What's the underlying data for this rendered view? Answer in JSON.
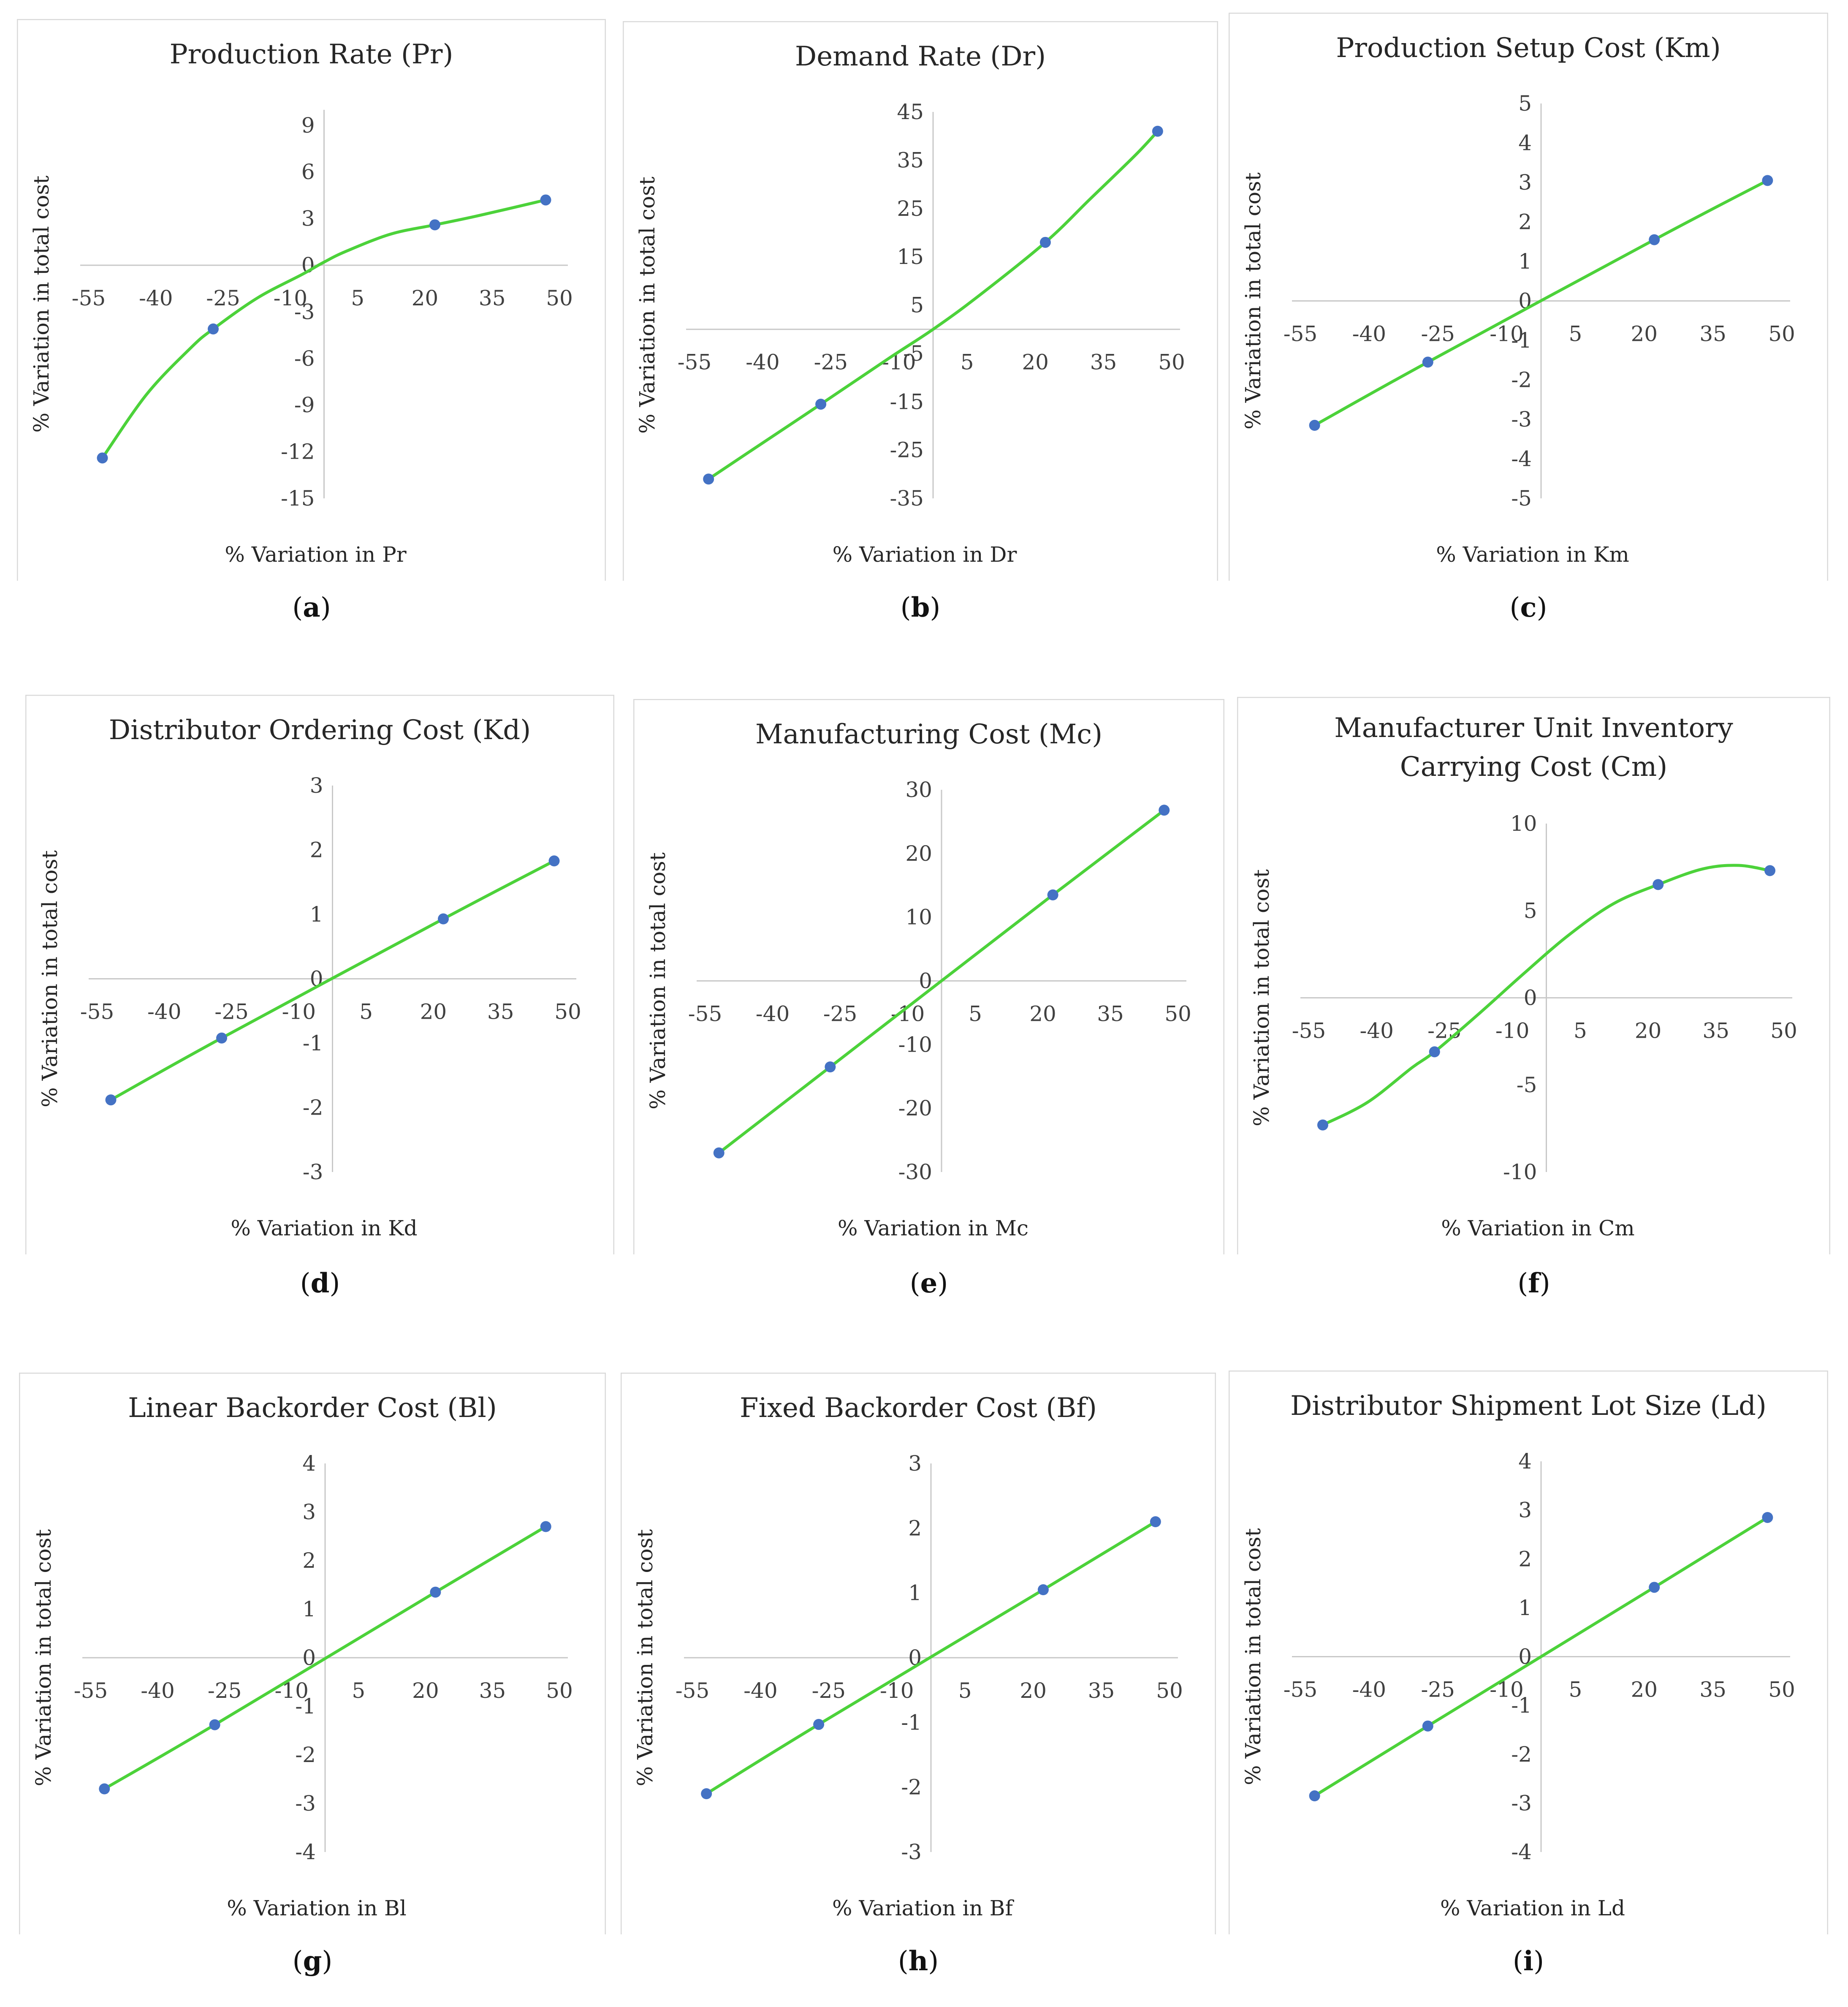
{
  "chart_data": [
    {
      "type": "scatter",
      "title": [
        "Production Rate (Pr)"
      ],
      "xlabel": "% Variation in Pr",
      "ylabel": "% Variation in total cost",
      "caption": "a",
      "xticks": [
        "-55",
        "-40",
        "-25",
        "-10",
        "5",
        "20",
        "35",
        "50"
      ],
      "yticks": [
        "-15",
        "-12",
        "-9",
        "-6",
        "-3",
        "0",
        "3",
        "6",
        "9"
      ],
      "xlim": [
        -55,
        55
      ],
      "ylim": [
        -15,
        10
      ],
      "x": [
        -50,
        -25,
        25,
        50
      ],
      "y": [
        -12.4,
        -4.1,
        2.6,
        4.2
      ],
      "curve": [
        [
          -50,
          -12.4
        ],
        [
          -40,
          -8.3
        ],
        [
          -30,
          -5.3
        ],
        [
          -25,
          -4.1
        ],
        [
          -15,
          -2.1
        ],
        [
          -5,
          -0.6
        ],
        [
          0,
          0.2
        ],
        [
          5,
          0.9
        ],
        [
          15,
          2.0
        ],
        [
          25,
          2.6
        ],
        [
          35,
          3.2
        ],
        [
          50,
          4.2
        ]
      ]
    },
    {
      "type": "scatter",
      "title": [
        "Demand Rate (Dr)"
      ],
      "xlabel": "% Variation in Dr",
      "ylabel": "% Variation in total cost",
      "caption": "b",
      "xticks": [
        "-55",
        "-40",
        "-25",
        "-10",
        "5",
        "20",
        "35",
        "50"
      ],
      "yticks": [
        "-35",
        "-25",
        "-15",
        "-5",
        "5",
        "15",
        "25",
        "35",
        "45"
      ],
      "xlim": [
        -55,
        55
      ],
      "ylim": [
        -35,
        45
      ],
      "x": [
        -50,
        -25,
        25,
        50
      ],
      "y": [
        -31,
        -15.5,
        18,
        41
      ],
      "curve": [
        [
          -50,
          -31
        ],
        [
          -40,
          -24.8
        ],
        [
          -25,
          -15.5
        ],
        [
          -10,
          -6.1
        ],
        [
          0,
          0
        ],
        [
          10,
          6.8
        ],
        [
          25,
          18
        ],
        [
          35,
          27
        ],
        [
          45,
          36
        ],
        [
          50,
          41
        ]
      ]
    },
    {
      "type": "scatter",
      "title": [
        "Production Setup Cost (Km)"
      ],
      "xlabel": "% Variation in Km",
      "ylabel": "% Variation in total cost",
      "caption": "c",
      "xticks": [
        "-55",
        "-40",
        "-25",
        "-10",
        "5",
        "20",
        "35",
        "50"
      ],
      "yticks": [
        "-5",
        "-4",
        "-3",
        "-2",
        "-1",
        "0",
        "1",
        "2",
        "3",
        "4",
        "5"
      ],
      "xlim": [
        -55,
        55
      ],
      "ylim": [
        -5,
        5
      ],
      "x": [
        -50,
        -25,
        25,
        50
      ],
      "y": [
        -3.15,
        -1.55,
        1.55,
        3.05
      ],
      "curve": [
        [
          -50,
          -3.15
        ],
        [
          -25,
          -1.55
        ],
        [
          25,
          1.55
        ],
        [
          50,
          3.05
        ]
      ]
    },
    {
      "type": "scatter",
      "title": [
        "Distributor Ordering Cost (Kd)"
      ],
      "xlabel": "% Variation in Kd",
      "ylabel": "% Variation in total cost",
      "caption": "d",
      "xticks": [
        "-55",
        "-40",
        "-25",
        "-10",
        "5",
        "20",
        "35",
        "50"
      ],
      "yticks": [
        "-3",
        "-2",
        "-1",
        "0",
        "1",
        "2",
        "3"
      ],
      "xlim": [
        -55,
        55
      ],
      "ylim": [
        -3,
        3
      ],
      "x": [
        -50,
        -25,
        25,
        50
      ],
      "y": [
        -1.88,
        -0.92,
        0.93,
        1.83
      ],
      "curve": [
        [
          -50,
          -1.88
        ],
        [
          -25,
          -0.92
        ],
        [
          25,
          0.93
        ],
        [
          50,
          1.83
        ]
      ]
    },
    {
      "type": "scatter",
      "title": [
        "Manufacturing Cost (Mc)"
      ],
      "xlabel": "% Variation in Mc",
      "ylabel": "% Variation in total cost",
      "caption": "e",
      "xticks": [
        "-55",
        "-40",
        "-25",
        "-10",
        "5",
        "20",
        "35",
        "50"
      ],
      "yticks": [
        "-30",
        "-20",
        "-10",
        "0",
        "10",
        "20",
        "30"
      ],
      "xlim": [
        -55,
        55
      ],
      "ylim": [
        -30,
        30
      ],
      "x": [
        -50,
        -25,
        25,
        50
      ],
      "y": [
        -27,
        -13.5,
        13.5,
        26.8
      ],
      "curve": [
        [
          -50,
          -27
        ],
        [
          -25,
          -13.5
        ],
        [
          25,
          13.5
        ],
        [
          50,
          26.8
        ]
      ]
    },
    {
      "type": "scatter",
      "title": [
        "Manufacturer Unit Inventory",
        "Carrying Cost (Cm)"
      ],
      "xlabel": "% Variation in Cm",
      "ylabel": "% Variation in total cost",
      "caption": "f",
      "xticks": [
        "-55",
        "-40",
        "-25",
        "-10",
        "5",
        "20",
        "35",
        "50"
      ],
      "yticks": [
        "-10",
        "-5",
        "0",
        "5",
        "10"
      ],
      "xlim": [
        -55,
        55
      ],
      "ylim": [
        -10,
        10
      ],
      "x": [
        -50,
        -25,
        25,
        50
      ],
      "y": [
        -7.3,
        -3.1,
        6.5,
        7.3
      ],
      "curve": [
        [
          -50,
          -7.3
        ],
        [
          -40,
          -6.0
        ],
        [
          -30,
          -4.0
        ],
        [
          -25,
          -3.1
        ],
        [
          -15,
          -0.9
        ],
        [
          -5,
          1.4
        ],
        [
          5,
          3.6
        ],
        [
          15,
          5.4
        ],
        [
          25,
          6.5
        ],
        [
          35,
          7.4
        ],
        [
          43,
          7.6
        ],
        [
          50,
          7.3
        ]
      ]
    },
    {
      "type": "scatter",
      "title": [
        "Linear Backorder Cost (Bl)"
      ],
      "xlabel": "% Variation in Bl",
      "ylabel": "% Variation in total cost",
      "caption": "g",
      "xticks": [
        "-55",
        "-40",
        "-25",
        "-10",
        "5",
        "20",
        "35",
        "50"
      ],
      "yticks": [
        "-4",
        "-3",
        "-2",
        "-1",
        "0",
        "1",
        "2",
        "3",
        "4"
      ],
      "xlim": [
        -55,
        55
      ],
      "ylim": [
        -4,
        4
      ],
      "x": [
        -50,
        -25,
        25,
        50
      ],
      "y": [
        -2.7,
        -1.38,
        1.35,
        2.7
      ],
      "curve": [
        [
          -50,
          -2.7
        ],
        [
          -25,
          -1.38
        ],
        [
          25,
          1.35
        ],
        [
          50,
          2.7
        ]
      ]
    },
    {
      "type": "scatter",
      "title": [
        "Fixed Backorder Cost (Bf)"
      ],
      "xlabel": "% Variation in Bf",
      "ylabel": "% Variation in total cost",
      "caption": "h",
      "xticks": [
        "-55",
        "-40",
        "-25",
        "-10",
        "5",
        "20",
        "35",
        "50"
      ],
      "yticks": [
        "-3",
        "-2",
        "-1",
        "0",
        "1",
        "2",
        "3"
      ],
      "xlim": [
        -55,
        55
      ],
      "ylim": [
        -3,
        3
      ],
      "x": [
        -50,
        -25,
        25,
        50
      ],
      "y": [
        -2.1,
        -1.03,
        1.05,
        2.1
      ],
      "curve": [
        [
          -50,
          -2.1
        ],
        [
          -25,
          -1.03
        ],
        [
          25,
          1.05
        ],
        [
          50,
          2.1
        ]
      ]
    },
    {
      "type": "scatter",
      "title": [
        "Distributor Shipment Lot Size (Ld)"
      ],
      "xlabel": "% Variation in Ld",
      "ylabel": "% Variation in total cost",
      "caption": "i",
      "xticks": [
        "-55",
        "-40",
        "-25",
        "-10",
        "5",
        "20",
        "35",
        "50"
      ],
      "yticks": [
        "-4",
        "-3",
        "-2",
        "-1",
        "0",
        "1",
        "2",
        "3",
        "4"
      ],
      "xlim": [
        -55,
        55
      ],
      "ylim": [
        -4,
        4
      ],
      "x": [
        -50,
        -25,
        25,
        50
      ],
      "y": [
        -2.85,
        -1.42,
        1.42,
        2.85
      ],
      "curve": [
        [
          -50,
          -2.85
        ],
        [
          -25,
          -1.42
        ],
        [
          25,
          1.42
        ],
        [
          50,
          2.85
        ]
      ]
    }
  ],
  "colors": {
    "line": "#4cd23a",
    "marker": "#4472c4",
    "axis": "#c8c8c8",
    "frame": "#d9d9d9"
  }
}
